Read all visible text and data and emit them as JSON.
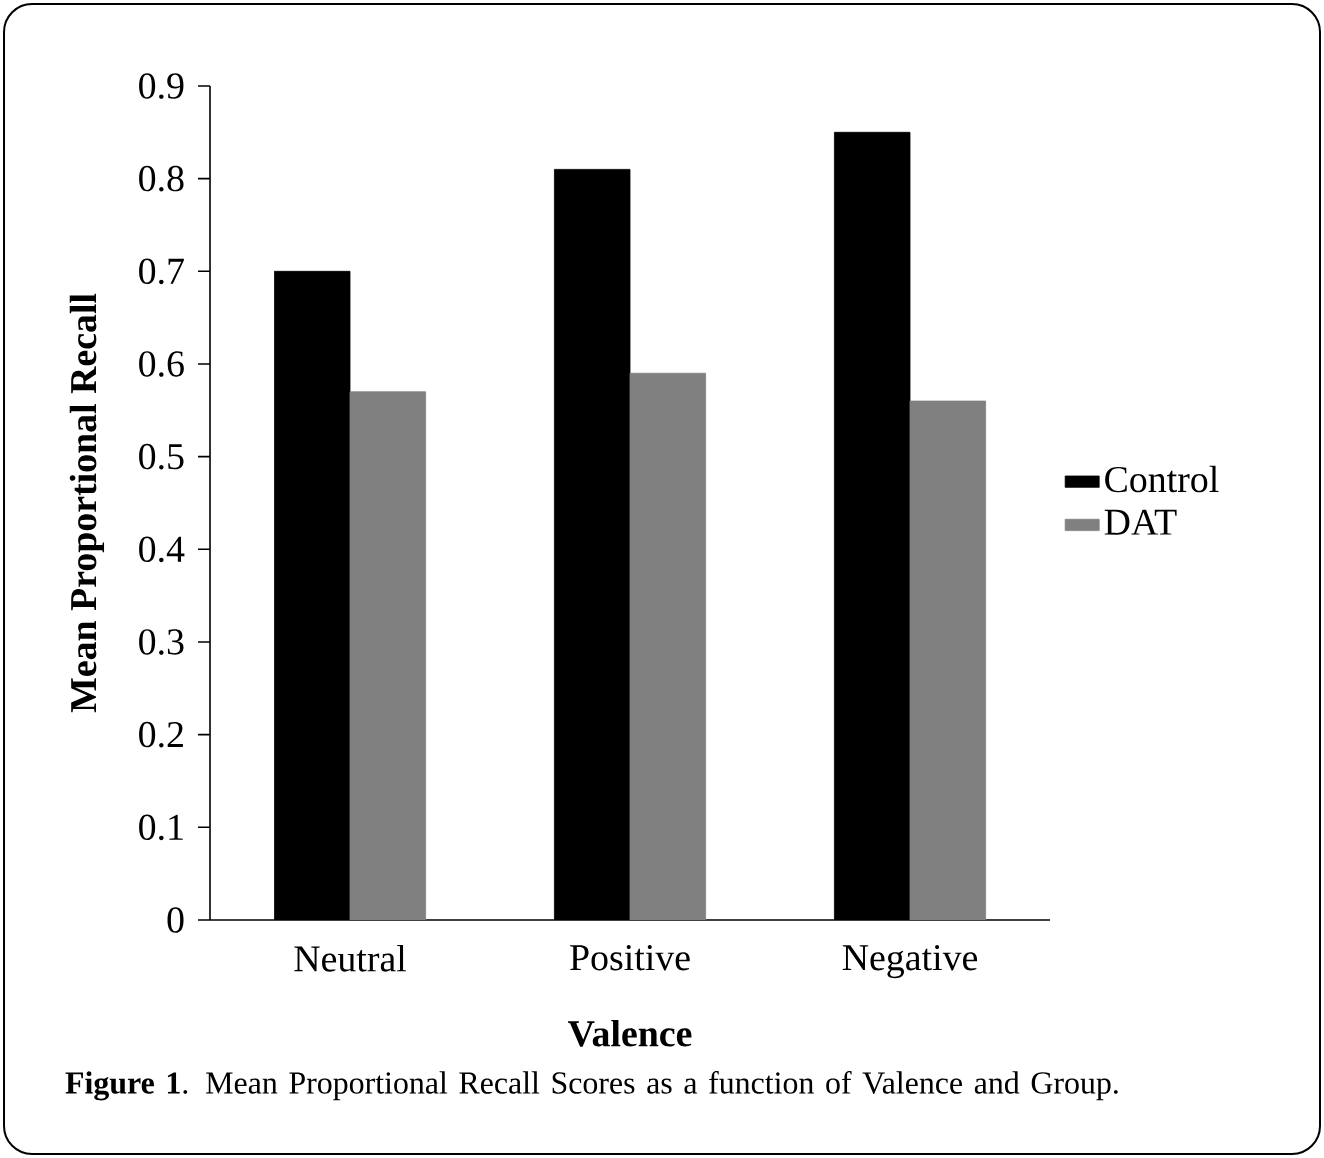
{
  "chart_data": {
    "type": "bar",
    "xlabel": "Valence",
    "ylabel": "Mean Proportional Recall",
    "categories": [
      "Neutral",
      "Positive",
      "Negative"
    ],
    "series": [
      {
        "name": "Control",
        "color": "#000000",
        "values": [
          0.7,
          0.81,
          0.85
        ]
      },
      {
        "name": "DAT",
        "color": "#808080",
        "values": [
          0.57,
          0.59,
          0.56
        ]
      }
    ],
    "ylim": [
      0,
      0.9
    ],
    "yticks": [
      0,
      0.1,
      0.2,
      0.3,
      0.4,
      0.5,
      0.6,
      0.7,
      0.8,
      0.9
    ],
    "grid": false,
    "legend": "right",
    "annotations": [
      "**Figure 1**. Mean Proportional Recall Scores as a function of Valence and Group."
    ]
  }
}
